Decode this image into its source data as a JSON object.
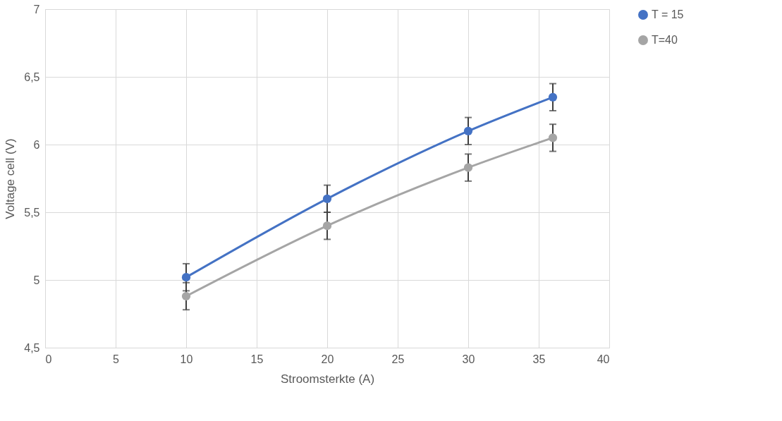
{
  "chart_data": {
    "type": "line",
    "xlabel": "Stroomsterkte (A)",
    "ylabel": "Voltage cell (V)",
    "x": [
      10,
      20,
      30,
      36
    ],
    "series": [
      {
        "name": "T = 15",
        "color": "#4472c4",
        "values": [
          5.02,
          5.6,
          6.1,
          6.35
        ],
        "errors": [
          0.1,
          0.1,
          0.1,
          0.1
        ]
      },
      {
        "name": "T=40",
        "color": "#a5a5a5",
        "values": [
          4.88,
          5.4,
          5.83,
          6.05
        ],
        "errors": [
          0.1,
          0.1,
          0.1,
          0.1
        ]
      }
    ],
    "xlim": [
      0,
      40
    ],
    "xticks": [
      0,
      5,
      10,
      15,
      20,
      25,
      30,
      35,
      40
    ],
    "ylim": [
      4.5,
      7
    ],
    "yticks": [
      {
        "value": 4.5,
        "label": "4,5"
      },
      5,
      {
        "value": 5.5,
        "label": "5,5"
      },
      6,
      {
        "value": 6.5,
        "label": "6,5"
      },
      7
    ],
    "grid": true,
    "legend": "right",
    "marker": "circle",
    "line_style": "solid"
  }
}
